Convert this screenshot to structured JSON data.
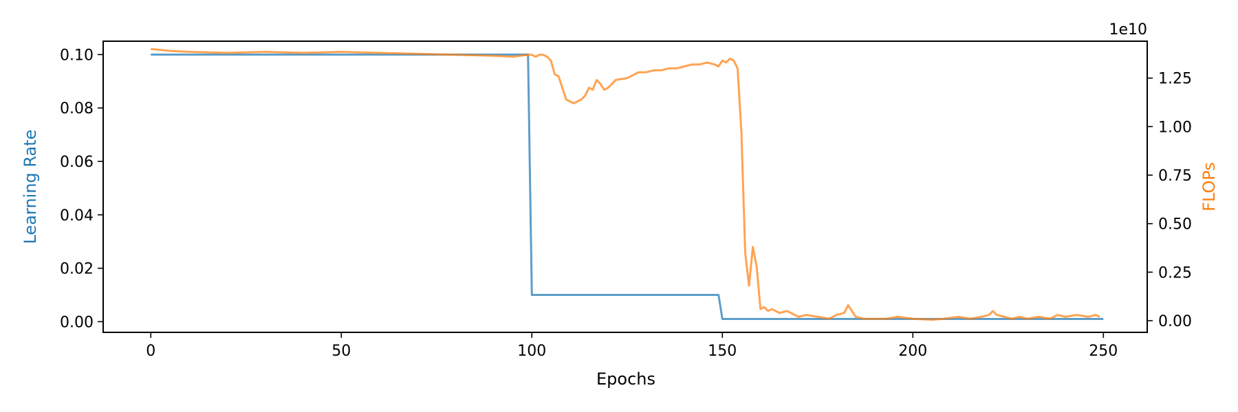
{
  "chart_data": {
    "type": "line",
    "xlabel": "Epochs",
    "x_ticks": [
      0,
      50,
      100,
      150,
      200,
      250
    ],
    "xlim": [
      -12.5,
      261.5
    ],
    "y_left": {
      "label": "Learning Rate",
      "color": "#1f77b4",
      "ticks": [
        0.0,
        0.02,
        0.04,
        0.06,
        0.08,
        0.1
      ],
      "tick_labels": [
        "0.00",
        "0.02",
        "0.04",
        "0.06",
        "0.08",
        "0.10"
      ],
      "lim": [
        -0.004,
        0.105
      ]
    },
    "y_right": {
      "label": "FLOPs",
      "color": "#ff7f0e",
      "offset_text": "1e10",
      "ticks": [
        0.0,
        0.25,
        0.5,
        0.75,
        1.0,
        1.25
      ],
      "tick_labels": [
        "0.00",
        "0.25",
        "0.50",
        "0.75",
        "1.00",
        "1.25"
      ],
      "lim": [
        -0.06,
        1.44
      ]
    },
    "series": [
      {
        "name": "Learning Rate",
        "axis": "left",
        "color": "#1f77b4",
        "points": [
          [
            0,
            0.1
          ],
          [
            99,
            0.1
          ],
          [
            100,
            0.01
          ],
          [
            149,
            0.01
          ],
          [
            150,
            0.001
          ],
          [
            250,
            0.001
          ]
        ]
      },
      {
        "name": "FLOPs",
        "axis": "right",
        "color": "#ff7f0e",
        "points": [
          [
            0,
            1.4
          ],
          [
            5,
            1.39
          ],
          [
            10,
            1.385
          ],
          [
            20,
            1.38
          ],
          [
            30,
            1.385
          ],
          [
            40,
            1.38
          ],
          [
            50,
            1.385
          ],
          [
            60,
            1.38
          ],
          [
            70,
            1.375
          ],
          [
            80,
            1.37
          ],
          [
            90,
            1.365
          ],
          [
            95,
            1.36
          ],
          [
            99,
            1.37
          ],
          [
            100,
            1.37
          ],
          [
            101,
            1.36
          ],
          [
            102,
            1.37
          ],
          [
            103,
            1.37
          ],
          [
            104,
            1.36
          ],
          [
            105,
            1.34
          ],
          [
            106,
            1.27
          ],
          [
            107,
            1.26
          ],
          [
            108,
            1.2
          ],
          [
            109,
            1.14
          ],
          [
            110,
            1.13
          ],
          [
            111,
            1.12
          ],
          [
            112,
            1.13
          ],
          [
            113,
            1.14
          ],
          [
            114,
            1.16
          ],
          [
            115,
            1.2
          ],
          [
            116,
            1.19
          ],
          [
            117,
            1.24
          ],
          [
            118,
            1.22
          ],
          [
            119,
            1.19
          ],
          [
            120,
            1.2
          ],
          [
            122,
            1.24
          ],
          [
            125,
            1.25
          ],
          [
            127,
            1.27
          ],
          [
            128,
            1.28
          ],
          [
            130,
            1.28
          ],
          [
            132,
            1.29
          ],
          [
            134,
            1.29
          ],
          [
            136,
            1.3
          ],
          [
            138,
            1.3
          ],
          [
            140,
            1.31
          ],
          [
            142,
            1.32
          ],
          [
            144,
            1.32
          ],
          [
            146,
            1.33
          ],
          [
            148,
            1.32
          ],
          [
            149,
            1.31
          ],
          [
            150,
            1.34
          ],
          [
            151,
            1.33
          ],
          [
            152,
            1.35
          ],
          [
            153,
            1.34
          ],
          [
            154,
            1.3
          ],
          [
            155,
            0.97
          ],
          [
            156,
            0.35
          ],
          [
            157,
            0.18
          ],
          [
            158,
            0.38
          ],
          [
            159,
            0.28
          ],
          [
            160,
            0.06
          ],
          [
            161,
            0.07
          ],
          [
            162,
            0.05
          ],
          [
            163,
            0.06
          ],
          [
            165,
            0.04
          ],
          [
            167,
            0.05
          ],
          [
            170,
            0.02
          ],
          [
            172,
            0.03
          ],
          [
            175,
            0.02
          ],
          [
            178,
            0.01
          ],
          [
            180,
            0.03
          ],
          [
            182,
            0.04
          ],
          [
            183,
            0.08
          ],
          [
            184,
            0.05
          ],
          [
            185,
            0.02
          ],
          [
            187,
            0.01
          ],
          [
            190,
            0.01
          ],
          [
            193,
            0.01
          ],
          [
            196,
            0.02
          ],
          [
            200,
            0.01
          ],
          [
            205,
            0.005
          ],
          [
            208,
            0.01
          ],
          [
            212,
            0.02
          ],
          [
            215,
            0.01
          ],
          [
            218,
            0.02
          ],
          [
            220,
            0.03
          ],
          [
            221,
            0.05
          ],
          [
            222,
            0.03
          ],
          [
            224,
            0.02
          ],
          [
            226,
            0.01
          ],
          [
            228,
            0.02
          ],
          [
            230,
            0.01
          ],
          [
            233,
            0.02
          ],
          [
            236,
            0.01
          ],
          [
            238,
            0.03
          ],
          [
            240,
            0.02
          ],
          [
            243,
            0.03
          ],
          [
            246,
            0.02
          ],
          [
            248,
            0.03
          ],
          [
            249,
            0.02
          ]
        ]
      }
    ]
  }
}
